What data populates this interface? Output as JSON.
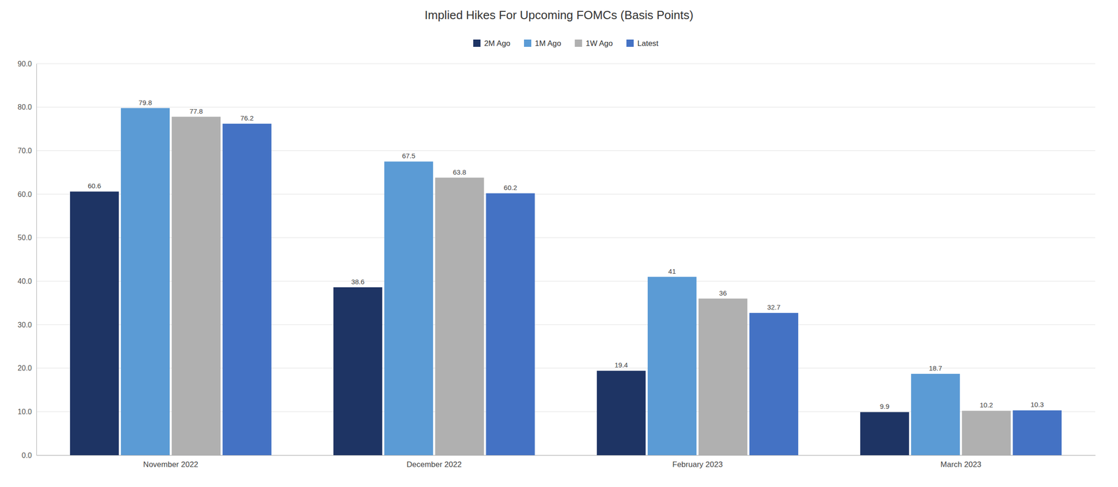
{
  "chart_data": {
    "type": "bar",
    "title": "Implied Hikes For Upcoming FOMCs (Basis Points)",
    "categories": [
      "November 2022",
      "December 2022",
      "February 2023",
      "March 2023"
    ],
    "series": [
      {
        "name": "2M Ago",
        "color": "#1e3464",
        "values": [
          60.6,
          38.6,
          19.4,
          9.9
        ]
      },
      {
        "name": "1M Ago",
        "color": "#5b9bd5",
        "values": [
          79.8,
          67.5,
          41.0,
          18.7
        ]
      },
      {
        "name": "1W Ago",
        "color": "#b0b0b0",
        "values": [
          77.8,
          63.8,
          36.0,
          10.2
        ]
      },
      {
        "name": "Latest",
        "color": "#4472c4",
        "values": [
          76.2,
          60.2,
          32.7,
          10.3
        ]
      }
    ],
    "ylim": [
      0,
      90
    ],
    "yticks": [
      {
        "value": 0,
        "label": "0.0"
      },
      {
        "value": 10,
        "label": "10.0"
      },
      {
        "value": 20,
        "label": "20.0"
      },
      {
        "value": 30,
        "label": "30.0"
      },
      {
        "value": 40,
        "label": "40.0"
      },
      {
        "value": 50,
        "label": "50.0"
      },
      {
        "value": 60,
        "label": "60.0"
      },
      {
        "value": 70,
        "label": "70.0"
      },
      {
        "value": 80,
        "label": "80.0"
      },
      {
        "value": 90,
        "label": "90.0"
      }
    ],
    "grid": true,
    "legend": "top",
    "data_labels": true
  }
}
